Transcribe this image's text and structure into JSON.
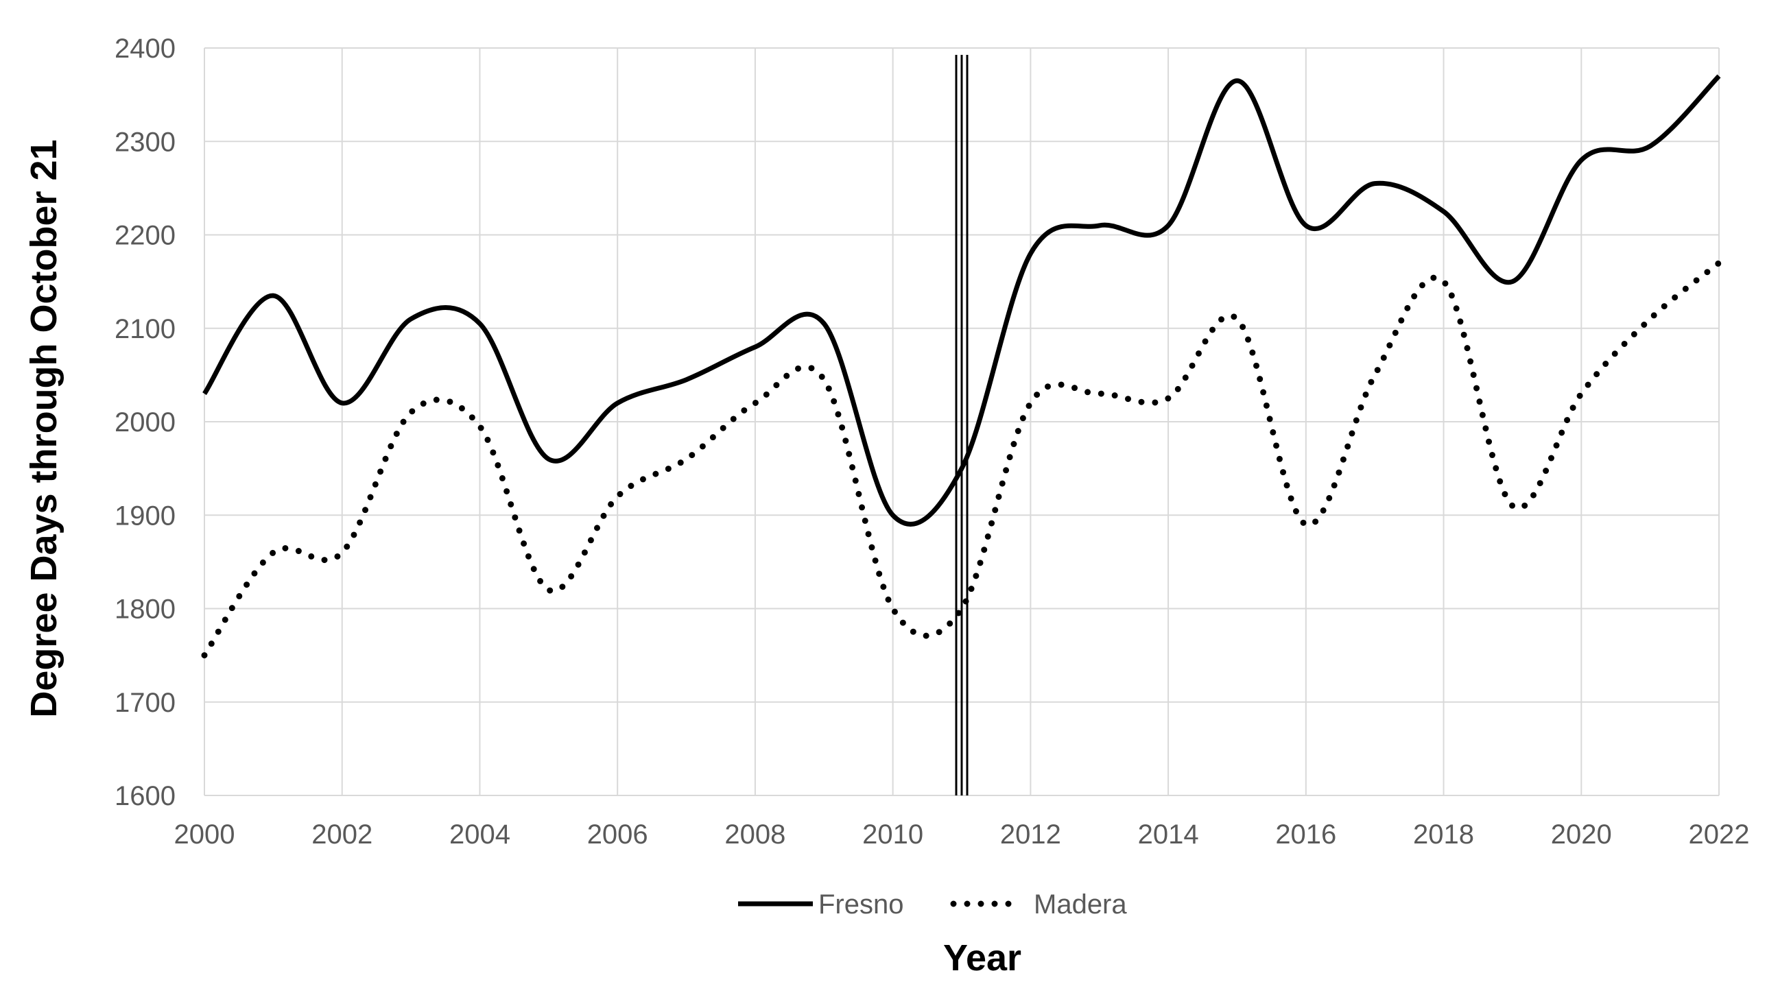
{
  "chart_data": {
    "type": "line",
    "title": "",
    "xlabel": "Year",
    "ylabel": "Degree Days through October 21",
    "x": [
      2000,
      2001,
      2002,
      2003,
      2004,
      2005,
      2006,
      2007,
      2008,
      2009,
      2010,
      2011,
      2012,
      2013,
      2014,
      2015,
      2016,
      2017,
      2018,
      2019,
      2020,
      2021,
      2022
    ],
    "xlim": [
      2000,
      2022
    ],
    "ylim": [
      1600,
      2400
    ],
    "x_ticks": [
      "2000",
      "2002",
      "2004",
      "2006",
      "2008",
      "2010",
      "2012",
      "2014",
      "2016",
      "2018",
      "2020",
      "2022"
    ],
    "y_ticks": [
      "1600",
      "1700",
      "1800",
      "1900",
      "2000",
      "2100",
      "2200",
      "2300",
      "2400"
    ],
    "grid": true,
    "legend_position": "bottom",
    "vertical_marker_x": 2011,
    "series": [
      {
        "name": "Fresno",
        "style": "solid",
        "color": "#000000",
        "values": [
          2030,
          2135,
          2020,
          2110,
          2105,
          1960,
          2020,
          2045,
          2080,
          2105,
          1900,
          1950,
          2180,
          2210,
          2210,
          2365,
          2210,
          2255,
          2225,
          2150,
          2280,
          2295,
          2370
        ]
      },
      {
        "name": "Madera",
        "style": "dotted",
        "color": "#000000",
        "values": [
          1750,
          1860,
          1860,
          2010,
          1995,
          1820,
          1920,
          1960,
          2020,
          2045,
          1800,
          1800,
          2020,
          2030,
          2025,
          2110,
          1890,
          2050,
          2150,
          1910,
          2030,
          2110,
          2170
        ]
      }
    ]
  }
}
